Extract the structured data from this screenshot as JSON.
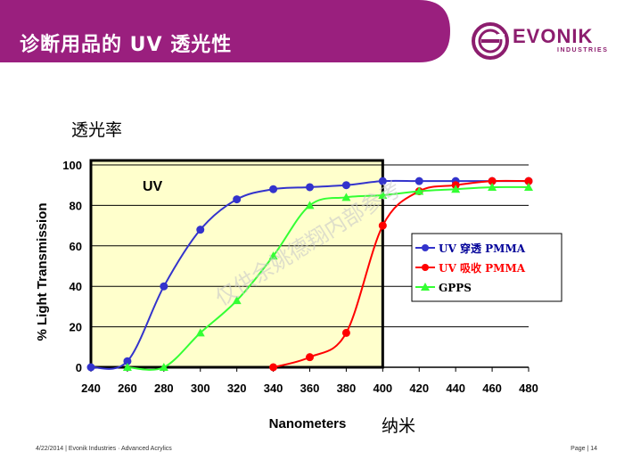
{
  "header": {
    "title": "诊断用品的 UV 透光性",
    "logo_name": "EVONIK",
    "logo_sub": "INDUSTRIES"
  },
  "footer": {
    "left": "4/22/2014 | Evonik Industries · Advanced Acrylics",
    "right": "Page | 14"
  },
  "colors": {
    "banner": "#9a1f7e",
    "logo": "#8c1d6e",
    "uv_fill": "#ffffcc",
    "pmma_uv": "#3333cc",
    "pmma_abs": "#ff0000",
    "gpps": "#33ff33"
  },
  "chart_data": {
    "type": "line",
    "ylabel_cn": "透光率",
    "ylabel": "% Light Transmission",
    "xlabel": "Nanometers",
    "xlabel_cn": "纳米",
    "region_label": "UV",
    "watermark": "仅供余姚德翔内部参考",
    "xlim": [
      240,
      480
    ],
    "ylim": [
      0,
      100
    ],
    "xticks": [
      "240",
      "260",
      "280",
      "300",
      "320",
      "340",
      "360",
      "380",
      "400",
      "420",
      "440",
      "460",
      "480"
    ],
    "yticks": [
      "0",
      "20",
      "40",
      "60",
      "80",
      "100"
    ],
    "uv_region": [
      240,
      400
    ],
    "series": [
      {
        "name": "UV 穿透 PMMA",
        "color": "#3333cc",
        "marker": "circle",
        "x": [
          240,
          260,
          280,
          300,
          320,
          340,
          360,
          380,
          400,
          420,
          440,
          460,
          480
        ],
        "y": [
          0,
          3,
          40,
          68,
          83,
          88,
          89,
          90,
          92,
          92,
          92,
          92,
          92
        ]
      },
      {
        "name": "UV 吸收 PMMA",
        "color": "#ff0000",
        "marker": "circle",
        "x": [
          340,
          360,
          380,
          400,
          420,
          440,
          460,
          480
        ],
        "y": [
          0,
          5,
          17,
          70,
          87,
          90,
          92,
          92
        ]
      },
      {
        "name": "GPPS",
        "color": "#33ff33",
        "marker": "triangle",
        "x": [
          260,
          280,
          300,
          320,
          340,
          360,
          380,
          400,
          420,
          440,
          460,
          480
        ],
        "y": [
          0,
          0,
          17,
          33,
          55,
          80,
          84,
          85,
          87,
          88,
          89,
          89
        ]
      }
    ]
  }
}
